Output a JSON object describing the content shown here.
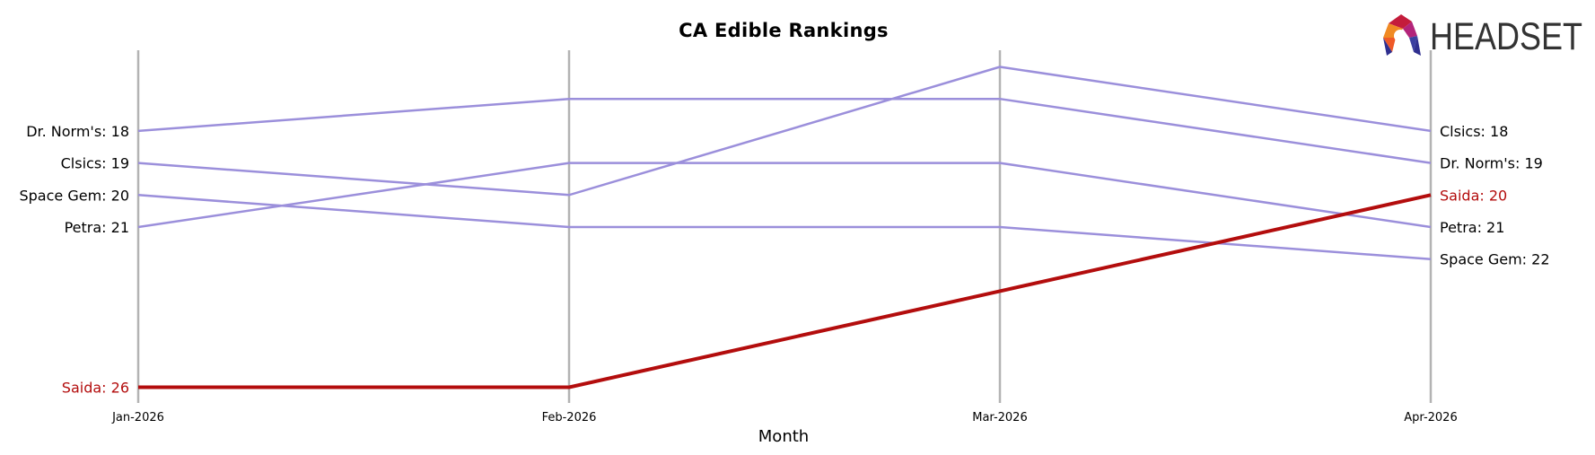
{
  "chart_data": {
    "type": "line",
    "title": "CA Edible Rankings",
    "xlabel": "Month",
    "ylabel": "",
    "x": [
      "Jan-2026",
      "Feb-2026",
      "Mar-2026",
      "Apr-2026"
    ],
    "y_inverted": true,
    "ylim": [
      16,
      27
    ],
    "grid": "vertical lines at each month",
    "series": [
      {
        "name": "Dr. Norm's",
        "values": [
          18,
          17,
          17,
          19
        ],
        "color": "#9b8fdb",
        "highlight": false
      },
      {
        "name": "Clsics",
        "values": [
          19,
          20,
          16,
          18
        ],
        "color": "#9b8fdb",
        "highlight": false
      },
      {
        "name": "Space Gem",
        "values": [
          20,
          21,
          21,
          22
        ],
        "color": "#9b8fdb",
        "highlight": false
      },
      {
        "name": "Petra",
        "values": [
          21,
          19,
          19,
          21
        ],
        "color": "#9b8fdb",
        "highlight": false
      },
      {
        "name": "Saida",
        "values": [
          26,
          26,
          23,
          20
        ],
        "color": "#b30d0d",
        "highlight": true
      }
    ],
    "left_labels": [
      "Dr. Norm's: 18",
      "Clsics: 19",
      "Space Gem: 20",
      "Petra: 21",
      "Saida: 26"
    ],
    "right_labels": [
      "Clsics: 18",
      "Dr. Norm's: 19",
      "Saida: 20",
      "Petra: 21",
      "Space Gem: 22"
    ]
  },
  "logo": {
    "text": "HEADSET"
  },
  "colors": {
    "other": "#9b8fdb",
    "highlight": "#b30d0d",
    "gridline": "#b3b3b3"
  }
}
